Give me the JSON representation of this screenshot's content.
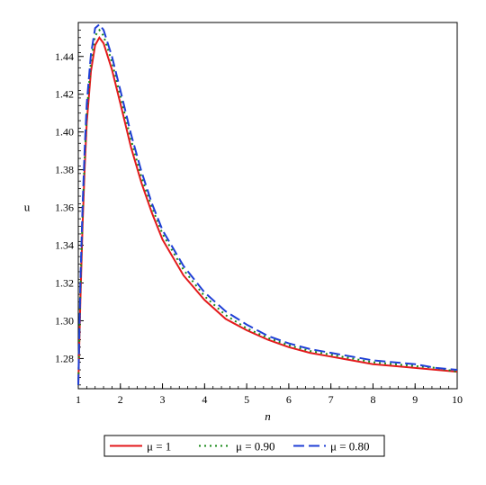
{
  "chart_data": {
    "type": "line",
    "xlabel": "n",
    "ylabel": "u",
    "xlim": [
      1,
      10
    ],
    "ylim": [
      1.264,
      1.458
    ],
    "x_ticks": [
      1,
      2,
      3,
      4,
      5,
      6,
      7,
      8,
      9,
      10
    ],
    "x_tick_labels": [
      "1",
      "2",
      "3",
      "4",
      "5",
      "6",
      "7",
      "8",
      "9",
      "10"
    ],
    "y_ticks": [
      1.28,
      1.3,
      1.32,
      1.34,
      1.36,
      1.38,
      1.4,
      1.42,
      1.44
    ],
    "y_tick_labels": [
      "1.28",
      "1.30",
      "1.32",
      "1.34",
      "1.36",
      "1.38",
      "1.40",
      "1.42",
      "1.44"
    ],
    "grid": false,
    "legend_position": "bottom",
    "series": [
      {
        "name": "μ = 1",
        "color": "#e31a1c",
        "style": "solid",
        "x": [
          1.0,
          1.05,
          1.1,
          1.15,
          1.2,
          1.3,
          1.4,
          1.5,
          1.6,
          1.8,
          2.0,
          2.25,
          2.5,
          2.75,
          3.0,
          3.5,
          4.0,
          4.5,
          5.0,
          5.5,
          6.0,
          6.5,
          7.0,
          7.5,
          8.0,
          8.5,
          9.0,
          9.5,
          10.0
        ],
        "y": [
          1.266,
          1.31,
          1.35,
          1.38,
          1.405,
          1.432,
          1.446,
          1.45,
          1.447,
          1.433,
          1.415,
          1.392,
          1.373,
          1.357,
          1.343,
          1.324,
          1.311,
          1.301,
          1.295,
          1.29,
          1.286,
          1.283,
          1.281,
          1.279,
          1.277,
          1.276,
          1.275,
          1.274,
          1.273
        ]
      },
      {
        "name": "μ = 0.90",
        "color": "#1a8a1a",
        "style": "dotted",
        "x": [
          1.0,
          1.05,
          1.1,
          1.15,
          1.2,
          1.3,
          1.4,
          1.5,
          1.6,
          1.8,
          2.0,
          2.25,
          2.5,
          2.75,
          3.0,
          3.5,
          4.0,
          4.5,
          5.0,
          5.5,
          6.0,
          6.5,
          7.0,
          7.5,
          8.0,
          8.5,
          9.0,
          9.5,
          10.0
        ],
        "y": [
          1.266,
          1.315,
          1.355,
          1.385,
          1.41,
          1.437,
          1.451,
          1.454,
          1.451,
          1.437,
          1.419,
          1.396,
          1.376,
          1.36,
          1.346,
          1.327,
          1.313,
          1.303,
          1.296,
          1.291,
          1.287,
          1.284,
          1.282,
          1.28,
          1.278,
          1.277,
          1.276,
          1.275,
          1.273
        ]
      },
      {
        "name": "μ = 0.80",
        "color": "#1f3fd6",
        "style": "dashed",
        "x": [
          1.0,
          1.05,
          1.1,
          1.15,
          1.2,
          1.3,
          1.4,
          1.5,
          1.6,
          1.8,
          2.0,
          2.25,
          2.5,
          2.75,
          3.0,
          3.5,
          4.0,
          4.5,
          5.0,
          5.5,
          6.0,
          6.5,
          7.0,
          7.5,
          8.0,
          8.5,
          9.0,
          9.5,
          10.0
        ],
        "y": [
          1.266,
          1.32,
          1.36,
          1.39,
          1.415,
          1.441,
          1.455,
          1.457,
          1.454,
          1.44,
          1.422,
          1.399,
          1.379,
          1.362,
          1.348,
          1.329,
          1.315,
          1.305,
          1.298,
          1.292,
          1.288,
          1.285,
          1.283,
          1.281,
          1.279,
          1.278,
          1.277,
          1.275,
          1.274
        ]
      }
    ]
  }
}
